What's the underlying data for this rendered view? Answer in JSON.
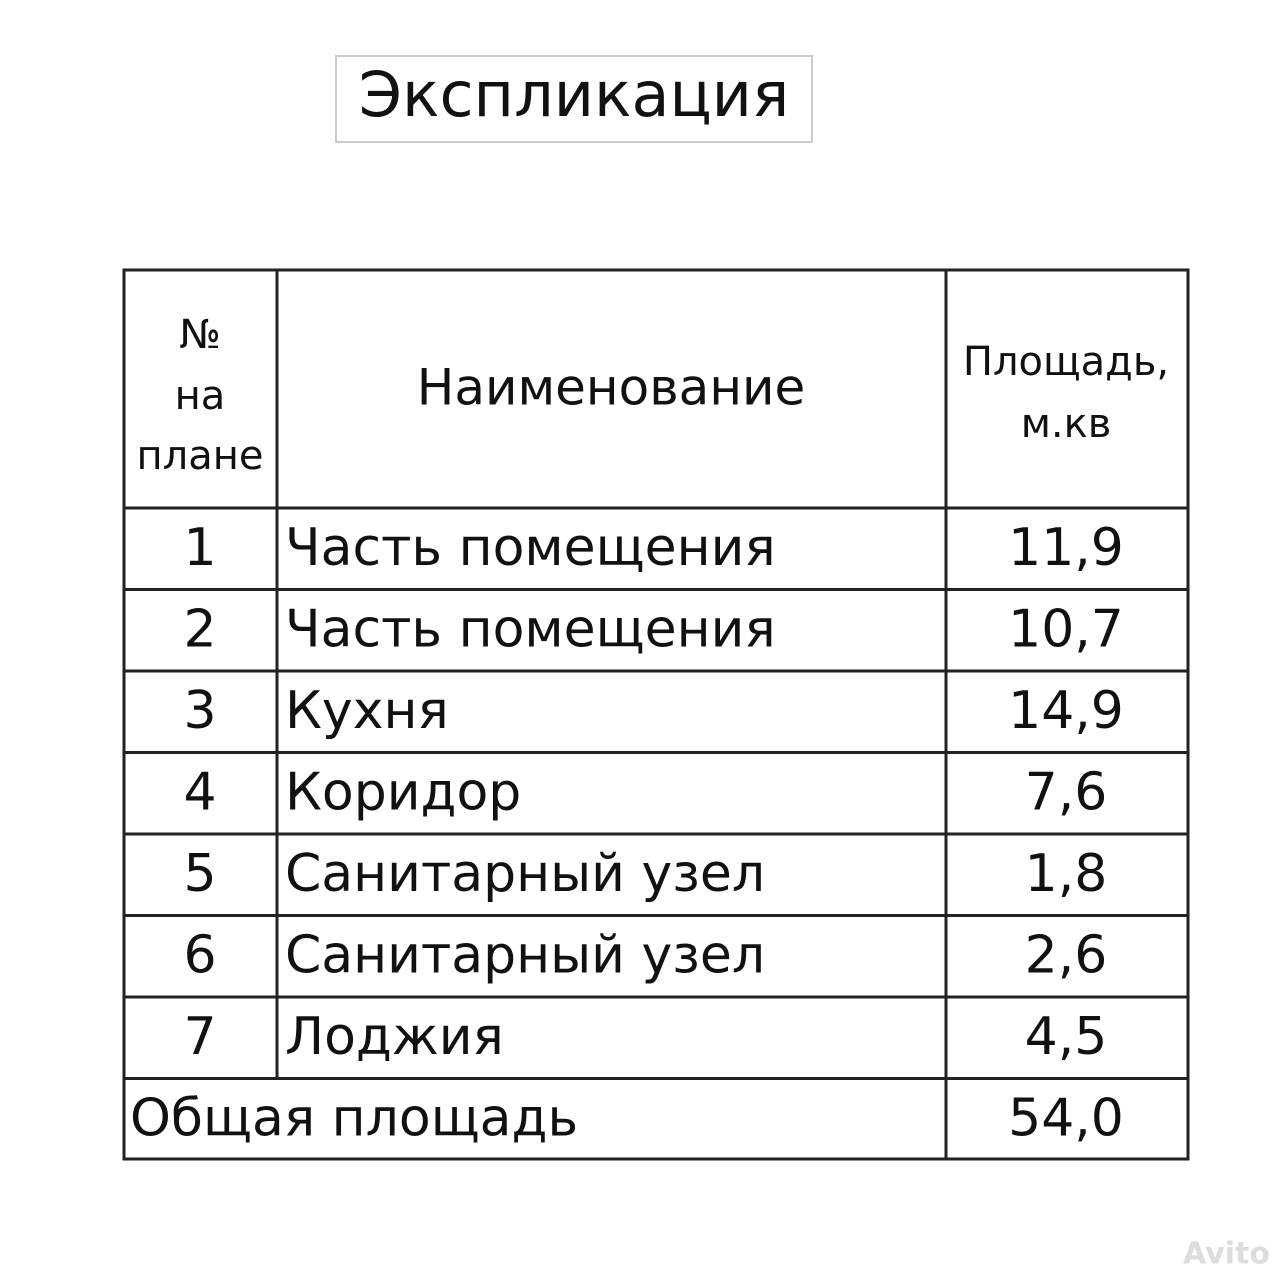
{
  "title": "Экспликация",
  "table": {
    "header": {
      "number": [
        "№",
        "на",
        "плане"
      ],
      "name": "Наименование",
      "area": [
        "Площадь,",
        "м.кв"
      ]
    },
    "rows": [
      [
        "1",
        "Часть помещения",
        "11,9"
      ],
      [
        "2",
        "Часть помещения",
        "10,7"
      ],
      [
        "3",
        "Кухня",
        "14,9"
      ],
      [
        "4",
        "Коридор",
        "7,6"
      ],
      [
        "5",
        "Санитарный узел",
        "1,8"
      ],
      [
        "6",
        "Санитарный узел",
        "2,6"
      ],
      [
        "7",
        "Лоджия",
        "4,5"
      ]
    ],
    "total": {
      "label": "Общая площадь",
      "area": "54,0"
    }
  },
  "watermark": "Avito"
}
